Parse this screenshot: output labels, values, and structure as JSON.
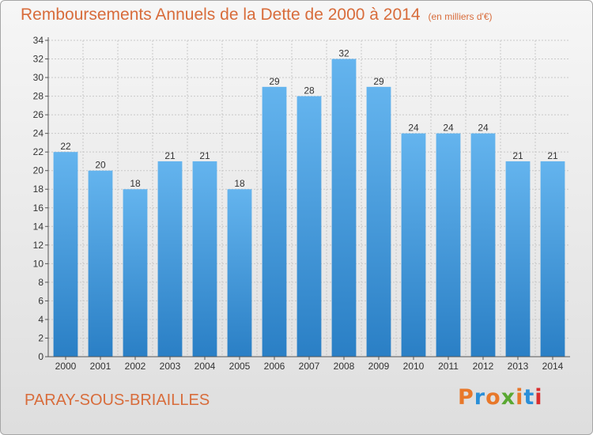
{
  "header": {
    "title": "Remboursements Annuels de la Dette de 2000 à 2014",
    "unit": "(en milliers d'€)"
  },
  "footer": {
    "commune": "PARAY-SOUS-BRIAILLES",
    "logo_text": "Proxiti",
    "logo_colors": [
      "#e8782a",
      "#2a8fd8",
      "#e8782a",
      "#5aa832",
      "#e8782a",
      "#2a8fd8",
      "#d92e2e"
    ]
  },
  "colors": {
    "bar_top": "#64b4ee",
    "bar_bottom": "#2a7fc5",
    "grid": "#c8c8c8",
    "axis": "#555555",
    "title": "#d86c3b"
  },
  "chart_data": {
    "type": "bar",
    "title": "Remboursements Annuels de la Dette de 2000 à 2014",
    "subtitle": "(en milliers d'€)",
    "xlabel": "",
    "ylabel": "",
    "categories": [
      "2000",
      "2001",
      "2002",
      "2003",
      "2004",
      "2005",
      "2006",
      "2007",
      "2008",
      "2009",
      "2010",
      "2011",
      "2012",
      "2013",
      "2014"
    ],
    "values": [
      22,
      20,
      18,
      21,
      21,
      18,
      29,
      28,
      32,
      29,
      24,
      24,
      24,
      21,
      21
    ],
    "ylim": [
      0,
      34
    ],
    "ytick_step": 2,
    "grid": true,
    "legend": "none"
  }
}
